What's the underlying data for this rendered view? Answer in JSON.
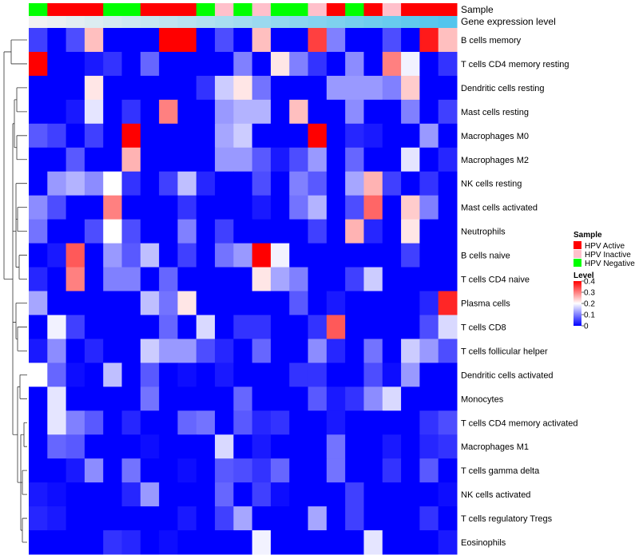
{
  "chart_data": {
    "type": "heatmap",
    "title": "",
    "annotation_tracks": {
      "sample_label": "Sample",
      "expression_label": "Gene expression level"
    },
    "sample_groups": [
      "HPV Negative",
      "HPV Active",
      "HPV Active",
      "HPV Active",
      "HPV Negative",
      "HPV Negative",
      "HPV Active",
      "HPV Active",
      "HPV Active",
      "HPV Negative",
      "HPV Inactive",
      "HPV Negative",
      "HPV Inactive",
      "HPV Negative",
      "HPV Negative",
      "HPV Inactive",
      "HPV Active",
      "HPV Negative",
      "HPV Active",
      "HPV Inactive",
      "HPV Active",
      "HPV Active",
      "HPV Active"
    ],
    "group_colors": {
      "HPV Active": "#ff0000",
      "HPV Inactive": "#ffc0cb",
      "HPV Negative": "#00ff00"
    },
    "expression_gradient": [
      "#f2f2f2",
      "#52c5ed"
    ],
    "rows": [
      "B cells memory",
      "T cells CD4 memory resting",
      "Dendritic cells resting",
      "Mast cells resting",
      "Macrophages M0",
      "Macrophages M2",
      "NK cells resting",
      "Mast cells activated",
      "Neutrophils",
      "B cells naive",
      "T cells CD4 naive",
      "Plasma cells",
      "T cells CD8",
      "T cells follicular helper",
      "Dendritic cells activated",
      "Monocytes",
      "T cells CD4 memory activated",
      "Macrophages M1",
      "T cells gamma delta",
      "NK cells activated",
      "T cells regulatory  Tregs",
      "Eosinophils"
    ],
    "values": [
      [
        0.05,
        0.0,
        0.06,
        0.25,
        0.0,
        0.0,
        0.0,
        0.4,
        0.4,
        0.0,
        0.06,
        0.0,
        0.25,
        0.0,
        0.0,
        0.35,
        0.1,
        0.0,
        0.0,
        0.06,
        0.0,
        0.38,
        0.25
      ],
      [
        0.4,
        0.0,
        0.0,
        0.02,
        0.04,
        0.0,
        0.08,
        0.0,
        0.0,
        0.0,
        0.0,
        0.1,
        0.0,
        0.22,
        0.1,
        0.04,
        0.0,
        0.11,
        0.0,
        0.3,
        0.19,
        0.0,
        0.04
      ],
      [
        0.0,
        0.0,
        0.0,
        0.22,
        0.0,
        0.0,
        0.0,
        0.0,
        0.0,
        0.04,
        0.16,
        0.22,
        0.09,
        0.0,
        0.0,
        0.0,
        0.12,
        0.12,
        0.12,
        0.1,
        0.24,
        0.0,
        0.0
      ],
      [
        0.0,
        0.0,
        0.02,
        0.18,
        0.0,
        0.04,
        0.0,
        0.3,
        0.0,
        0.0,
        0.12,
        0.14,
        0.14,
        0.0,
        0.25,
        0.0,
        0.0,
        0.11,
        0.0,
        0.0,
        0.1,
        0.0,
        0.05
      ],
      [
        0.07,
        0.05,
        0.0,
        0.05,
        0.0,
        0.4,
        0.0,
        0.0,
        0.0,
        0.0,
        0.13,
        0.16,
        0.0,
        0.0,
        0.0,
        0.4,
        0.0,
        0.03,
        0.02,
        0.0,
        0.0,
        0.12,
        0.0
      ],
      [
        0.0,
        0.0,
        0.07,
        0.0,
        0.0,
        0.26,
        0.0,
        0.0,
        0.0,
        0.0,
        0.12,
        0.12,
        0.07,
        0.02,
        0.06,
        0.12,
        0.0,
        0.08,
        0.0,
        0.0,
        0.18,
        0.0,
        0.03
      ],
      [
        0.0,
        0.12,
        0.14,
        0.11,
        0.2,
        0.04,
        0.0,
        0.05,
        0.15,
        0.03,
        0.0,
        0.0,
        0.06,
        0.0,
        0.1,
        0.07,
        0.0,
        0.13,
        0.26,
        0.05,
        0.0,
        0.04,
        0.0
      ],
      [
        0.11,
        0.06,
        0.0,
        0.0,
        0.3,
        0.0,
        0.0,
        0.0,
        0.04,
        0.0,
        0.0,
        0.0,
        0.02,
        0.0,
        0.09,
        0.14,
        0.0,
        0.06,
        0.32,
        0.0,
        0.24,
        0.1,
        0.0
      ],
      [
        0.09,
        0.0,
        0.0,
        0.06,
        0.2,
        0.06,
        0.0,
        0.0,
        0.1,
        0.0,
        0.05,
        0.0,
        0.0,
        0.0,
        0.0,
        0.05,
        0.0,
        0.26,
        0.03,
        0.0,
        0.22,
        0.0,
        0.0
      ],
      [
        0.0,
        0.02,
        0.33,
        0.0,
        0.12,
        0.07,
        0.15,
        0.0,
        0.05,
        0.0,
        0.09,
        0.12,
        0.4,
        0.19,
        0.0,
        0.0,
        0.0,
        0.0,
        0.0,
        0.0,
        0.05,
        0.0,
        0.0
      ],
      [
        0.03,
        0.0,
        0.3,
        0.0,
        0.1,
        0.1,
        0.0,
        0.08,
        0.0,
        0.0,
        0.0,
        0.0,
        0.22,
        0.13,
        0.1,
        0.0,
        0.0,
        0.05,
        0.16,
        0.0,
        0.0,
        0.0,
        0.0
      ],
      [
        0.13,
        0.0,
        0.0,
        0.0,
        0.0,
        0.0,
        0.15,
        0.09,
        0.22,
        0.0,
        0.0,
        0.0,
        0.0,
        0.0,
        0.07,
        0.0,
        0.02,
        0.0,
        0.0,
        0.0,
        0.0,
        0.03,
        0.37
      ],
      [
        0.0,
        0.19,
        0.05,
        0.0,
        0.0,
        0.0,
        0.0,
        0.08,
        0.0,
        0.17,
        0.0,
        0.04,
        0.04,
        0.0,
        0.0,
        0.04,
        0.33,
        0.0,
        0.0,
        0.0,
        0.0,
        0.06,
        0.17
      ],
      [
        0.02,
        0.11,
        0.0,
        0.03,
        0.0,
        0.0,
        0.16,
        0.12,
        0.12,
        0.06,
        0.03,
        0.0,
        0.08,
        0.0,
        0.0,
        0.11,
        0.03,
        0.0,
        0.09,
        0.0,
        0.16,
        0.12,
        0.06
      ],
      [
        0.2,
        0.08,
        0.01,
        0.0,
        0.15,
        0.0,
        0.07,
        0.0,
        0.01,
        0.0,
        0.02,
        0.0,
        0.0,
        0.0,
        0.04,
        0.04,
        0.0,
        0.0,
        0.06,
        0.01,
        0.12,
        0.0,
        0.0
      ],
      [
        0.0,
        0.18,
        0.0,
        0.0,
        0.0,
        0.0,
        0.09,
        0.0,
        0.0,
        0.0,
        0.0,
        0.08,
        0.0,
        0.0,
        0.0,
        0.07,
        0.02,
        0.04,
        0.11,
        0.17,
        0.0,
        0.0,
        0.0
      ],
      [
        0.0,
        0.18,
        0.1,
        0.07,
        0.0,
        0.03,
        0.0,
        0.0,
        0.08,
        0.09,
        0.0,
        0.07,
        0.03,
        0.04,
        0.0,
        0.0,
        0.02,
        0.0,
        0.0,
        0.0,
        0.0,
        0.04,
        0.06
      ],
      [
        0.0,
        0.08,
        0.07,
        0.0,
        0.0,
        0.0,
        0.01,
        0.0,
        0.0,
        0.0,
        0.17,
        0.0,
        0.02,
        0.0,
        0.0,
        0.0,
        0.09,
        0.0,
        0.0,
        0.02,
        0.0,
        0.03,
        0.04
      ],
      [
        0.0,
        0.0,
        0.02,
        0.11,
        0.0,
        0.09,
        0.0,
        0.0,
        0.01,
        0.0,
        0.07,
        0.06,
        0.04,
        0.08,
        0.0,
        0.0,
        0.09,
        0.0,
        0.0,
        0.04,
        0.0,
        0.07,
        0.0
      ],
      [
        0.02,
        0.01,
        0.0,
        0.0,
        0.0,
        0.03,
        0.12,
        0.0,
        0.0,
        0.0,
        0.08,
        0.0,
        0.05,
        0.01,
        0.0,
        0.0,
        0.0,
        0.05,
        0.0,
        0.0,
        0.0,
        0.0,
        0.01
      ],
      [
        0.03,
        0.02,
        0.0,
        0.0,
        0.0,
        0.0,
        0.0,
        0.0,
        0.02,
        0.0,
        0.05,
        0.13,
        0.0,
        0.0,
        0.0,
        0.13,
        0.0,
        0.05,
        0.0,
        0.0,
        0.0,
        0.04,
        0.0
      ],
      [
        0.0,
        0.0,
        0.0,
        0.0,
        0.04,
        0.03,
        0.0,
        0.01,
        0.0,
        0.0,
        0.0,
        0.0,
        0.19,
        0.0,
        0.0,
        0.0,
        0.0,
        0.0,
        0.18,
        0.0,
        0.0,
        0.0,
        0.02
      ]
    ],
    "color_scale": {
      "min": 0,
      "max": 0.4,
      "stops": [
        {
          "value": 0.0,
          "color": "#0000ff"
        },
        {
          "value": 0.2,
          "color": "#ffffff"
        },
        {
          "value": 0.4,
          "color": "#ff0000"
        }
      ]
    },
    "legend": {
      "sample_title": "Sample",
      "sample_items": [
        "HPV Active",
        "HPV Inactive",
        "HPV Negative"
      ],
      "level_title": "Level",
      "level_ticks": [
        "0.4",
        "0.3",
        "0.2",
        "0.1",
        "0"
      ],
      "level_tick_values": [
        0.4,
        0.3,
        0.2,
        0.1,
        0
      ],
      "placement": "right"
    },
    "row_dendrogram": true
  }
}
